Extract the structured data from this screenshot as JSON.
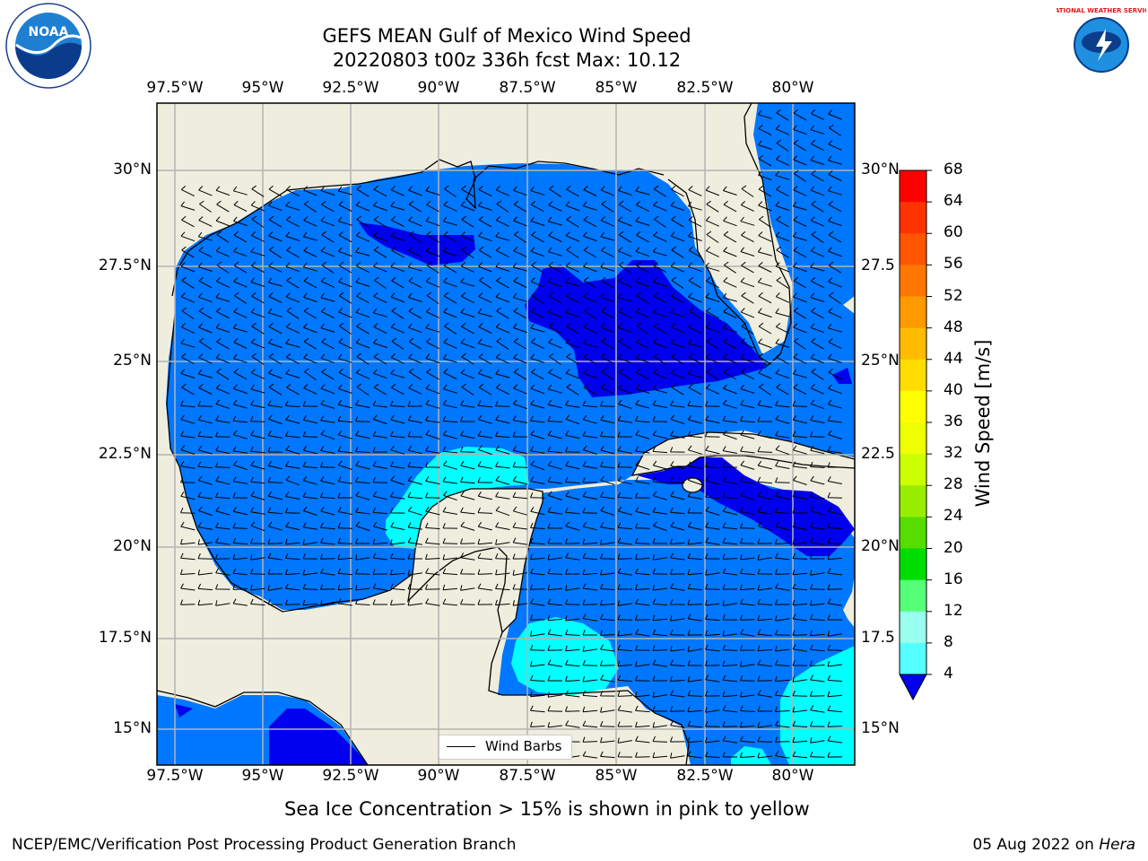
{
  "title_line1": "GEFS MEAN Gulf of Mexico Wind Speed",
  "title_line2": "20220803 t00z 336h fcst   Max: 10.12",
  "top_lon_labels": [
    "97.5°W",
    "95°W",
    "92.5°W",
    "90°W",
    "87.5°W",
    "85°W",
    "82.5°W",
    "80°W"
  ],
  "bottom_lon_labels": [
    "97.5°W",
    "95°W",
    "92.5°W",
    "90°W",
    "87.5°W",
    "85°W",
    "82.5°W",
    "80°W"
  ],
  "left_lat_labels": [
    "30°N",
    "27.5°N",
    "25°N",
    "22.5°N",
    "20°N",
    "17.5°N",
    "15°N"
  ],
  "right_lat_labels": [
    "30°N",
    "27.5",
    "25°N",
    "22.5",
    "20°N",
    "17.5",
    "15°N"
  ],
  "legend": {
    "wind_barbs_label": "Wind Barbs"
  },
  "colorbar": {
    "label": "Wind Speed [m/s]",
    "ticks": [
      "68",
      "64",
      "60",
      "56",
      "52",
      "48",
      "44",
      "40",
      "36",
      "32",
      "28",
      "24",
      "20",
      "16",
      "12",
      "8",
      "4"
    ],
    "colors": [
      "#ff0000",
      "#ff3300",
      "#ff5500",
      "#ff7700",
      "#ff9900",
      "#ffbb00",
      "#ffdd00",
      "#ffff00",
      "#eeff00",
      "#ccff00",
      "#99ee00",
      "#55dd00",
      "#00dd00",
      "#55ff77",
      "#99ffee",
      "#55ffff",
      "#00ffff",
      "#0077ff"
    ],
    "extend_color": "#0000ee"
  },
  "caption": "Sea Ice Concentration > 15% is shown in pink to yellow",
  "footer_left": "NCEP/EMC/Verification Post Processing Product Generation Branch",
  "footer_right_date": "05 Aug 2022 on ",
  "footer_right_host": "Hera",
  "map_colors": {
    "land": "#efedde",
    "wind_4_8": "#0077ff",
    "wind_below_4": "#0000ee",
    "wind_8_12": "#00ffff",
    "grid": "#b4b4b4"
  },
  "logos": {
    "left": "NOAA",
    "right": "NATIONAL WEATHER SERVICE"
  }
}
